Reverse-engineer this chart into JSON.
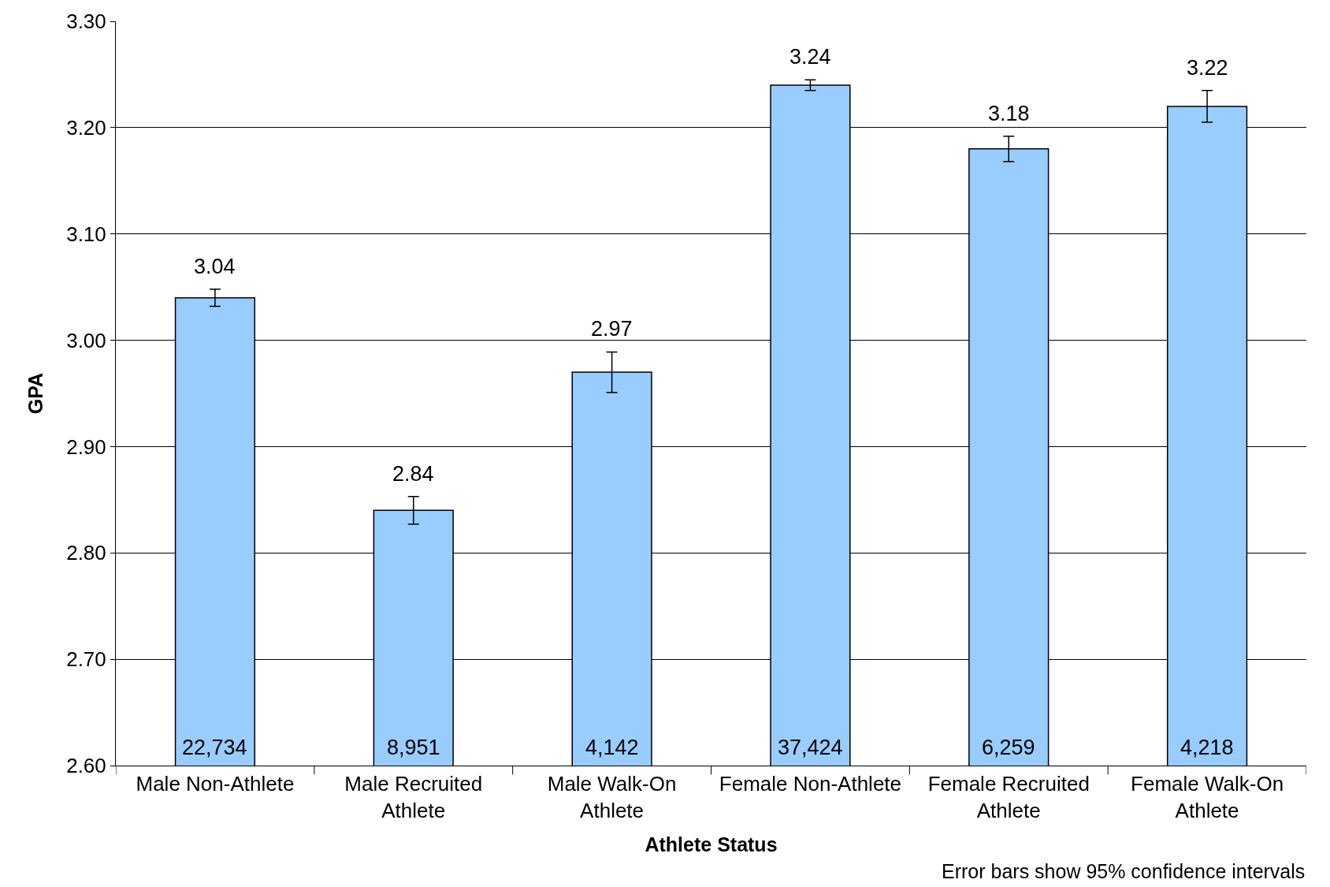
{
  "chart_data": {
    "type": "bar",
    "xlabel": "Athlete Status",
    "ylabel": "GPA",
    "categories": [
      "Male Non-Athlete",
      "Male Recruited Athlete",
      "Male Walk-On Athlete",
      "Female Non-Athlete",
      "Female Recruited Athlete",
      "Female Walk-On Athlete"
    ],
    "values": [
      3.04,
      2.84,
      2.97,
      3.24,
      3.18,
      3.22
    ],
    "errors": [
      0.008,
      0.013,
      0.019,
      0.005,
      0.012,
      0.015
    ],
    "color": "#99ccff",
    "data_labels": true,
    "ylim": [
      2.6,
      3.3
    ],
    "yticks": [
      {
        "value": 2.6,
        "label": "2.60"
      },
      {
        "value": 2.7,
        "label": "2.70"
      },
      {
        "value": 2.8,
        "label": "2.80"
      },
      {
        "value": 2.9,
        "label": "2.90"
      },
      {
        "value": 3.0,
        "label": "3.00"
      },
      {
        "value": 3.1,
        "label": "3.10"
      },
      {
        "value": 3.2,
        "label": "3.20"
      },
      {
        "value": 3.3,
        "label": "3.30"
      }
    ],
    "grid": "y",
    "annotations": [
      "22,734",
      "8,951",
      "4,142",
      "37,424",
      "6,259",
      "4,218",
      "Error bars show 95% confidence intervals"
    ]
  }
}
